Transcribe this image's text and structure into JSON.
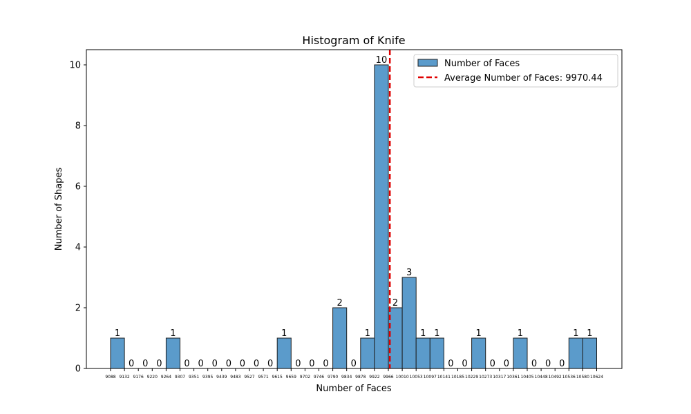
{
  "chart_data": {
    "type": "bar",
    "title": "Histogram of Knife",
    "xlabel": "Number of Faces",
    "ylabel": "Number of Shapes",
    "bin_edges": [
      9088,
      9132,
      9176,
      9220,
      9264,
      9307,
      9351,
      9395,
      9439,
      9483,
      9527,
      9571,
      9615,
      9659,
      9702,
      9746,
      9790,
      9834,
      9878,
      9922,
      9966,
      10010,
      10053,
      10097,
      10141,
      10185,
      10229,
      10273,
      10317,
      10361,
      10405,
      10448,
      10492,
      10536,
      10580,
      10624
    ],
    "counts": [
      1,
      0,
      0,
      0,
      1,
      0,
      0,
      0,
      0,
      0,
      0,
      0,
      1,
      0,
      0,
      0,
      2,
      0,
      1,
      10,
      2,
      3,
      1,
      1,
      0,
      0,
      1,
      0,
      0,
      1,
      0,
      0,
      0,
      1,
      1
    ],
    "yticks": [
      0,
      2,
      4,
      6,
      8,
      10
    ],
    "ylim": [
      0,
      10.5
    ],
    "average": 9970.44,
    "bar_color": "#5b9bcb",
    "bar_edge_color": "#1f1f1f",
    "average_line_color": "#e00000",
    "legend": {
      "position": "top-right",
      "bar_label": "Number of Faces",
      "line_label": "Average Number of Faces: 9970.44"
    },
    "grid": false
  }
}
